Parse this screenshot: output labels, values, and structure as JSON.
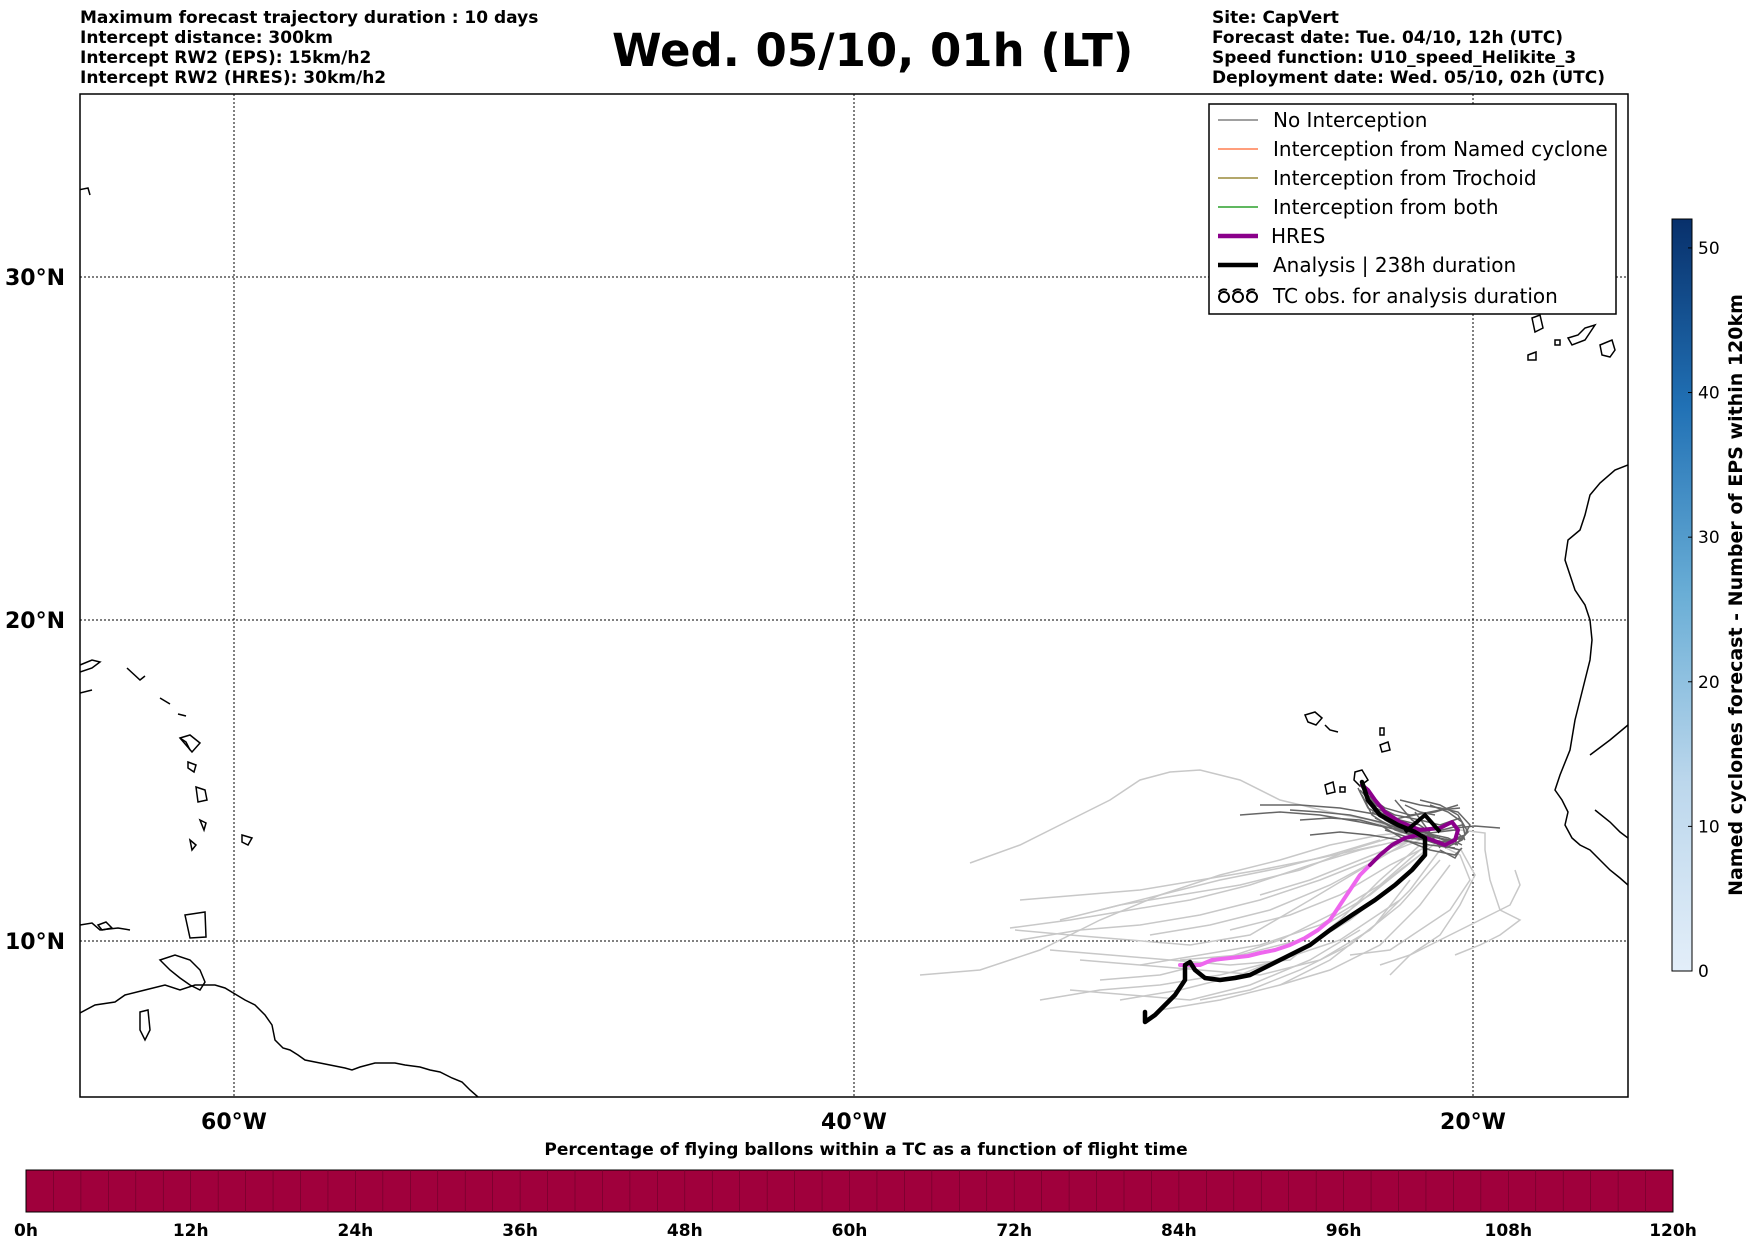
{
  "header": {
    "left_lines": [
      "Maximum forecast trajectory duration : 10 days",
      "Intercept distance: 300km",
      "Intercept RW2 (EPS):  15km/h2",
      "Intercept RW2 (HRES): 30km/h2"
    ],
    "title": "Wed. 05/10, 01h (LT)",
    "right_lines": [
      "Site: CapVert",
      "Forecast date: Tue. 04/10, 12h (UTC)",
      "Speed function: U10_speed_Helikite_3",
      "Deployment date: Wed. 05/10, 02h (UTC)"
    ]
  },
  "map": {
    "lat_labels": [
      "30°N",
      "20°N",
      "10°N"
    ],
    "lon_labels": [
      "60°W",
      "40°W",
      "20°W"
    ],
    "lon_range": [
      -65,
      -15
    ],
    "lat_range": [
      5.1,
      35.5
    ]
  },
  "legend": {
    "items": [
      {
        "label": "No Interception",
        "color": "#808080",
        "style": "thin"
      },
      {
        "label": "Interception from Named cyclone",
        "color": "#ff7f50",
        "style": "thin"
      },
      {
        "label": "Interception from Trochoid",
        "color": "#9a8a3a",
        "style": "thin"
      },
      {
        "label": "Interception from both",
        "color": "#2ca02c",
        "style": "thin"
      },
      {
        "label": "HRES",
        "color": "#8b008b",
        "style": "thick"
      },
      {
        "label": "Analysis | 238h duration",
        "color": "#000000",
        "style": "thick"
      },
      {
        "label": "TC obs. for analysis duration",
        "color": "#000000",
        "style": "tc-symbols"
      }
    ]
  },
  "colorbar_right": {
    "title": "Named cyclones forecast - Number of EPS within 120km",
    "ticks": [
      "0",
      "10",
      "20",
      "30",
      "40",
      "50"
    ],
    "max": 52,
    "color_low": "#e3eef9",
    "color_high": "#08306b"
  },
  "colorbar_bottom": {
    "title": "Percentage of flying ballons within a TC as a function of flight time",
    "ticks": [
      "0h",
      "12h",
      "24h",
      "36h",
      "48h",
      "60h",
      "72h",
      "84h",
      "96h",
      "108h",
      "120h"
    ],
    "fill_color": "#a0003c"
  },
  "colors": {
    "gray_light": "#c8c8c8",
    "gray_dark": "#666666",
    "hres_purple": "#8b008b",
    "hres_pink": "#ee66ee",
    "analysis": "#000000"
  }
}
